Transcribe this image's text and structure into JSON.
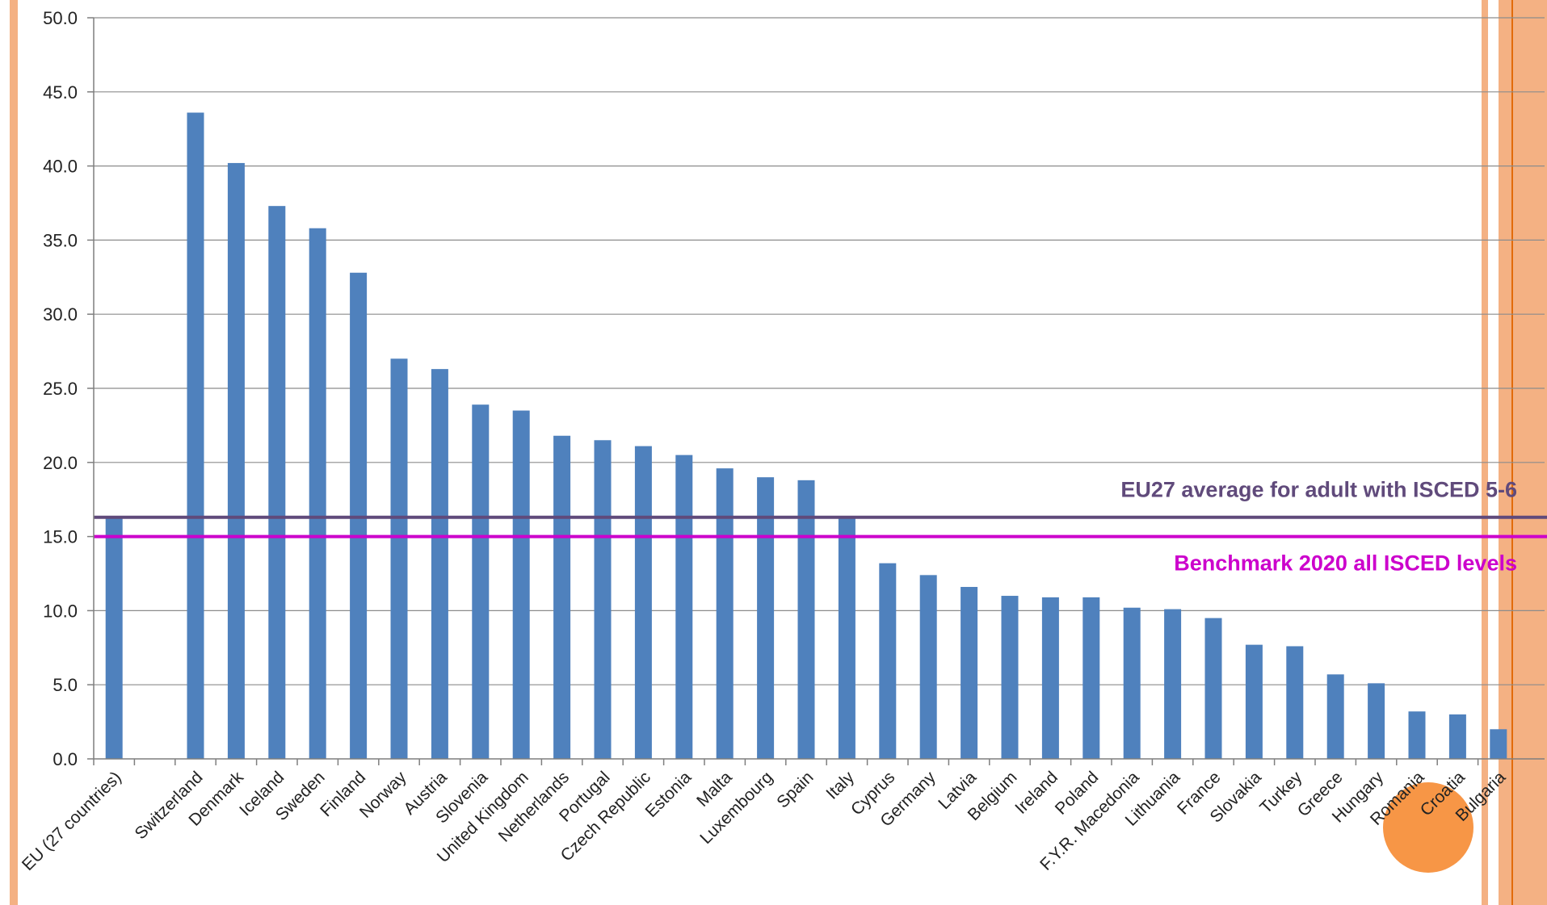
{
  "chart_data": {
    "type": "bar",
    "categories": [
      "EU (27 countries)",
      "",
      "Switzerland",
      "Denmark",
      "Iceland",
      "Sweden",
      "Finland",
      "Norway",
      "Austria",
      "Slovenia",
      "United Kingdom",
      "Netherlands",
      "Portugal",
      "Czech Republic",
      "Estonia",
      "Malta",
      "Luxembourg",
      "Spain",
      "Italy",
      "Cyprus",
      "Germany",
      "Latvia",
      "Belgium",
      "Ireland",
      "Poland",
      "F.Y.R. Macedonia",
      "Lithuania",
      "France",
      "Slovakia",
      "Turkey",
      "Greece",
      "Hungary",
      "Romania",
      "Croatia",
      "Bulgaria"
    ],
    "values": [
      16.3,
      null,
      43.6,
      40.2,
      37.3,
      35.8,
      32.8,
      27.0,
      26.3,
      23.9,
      23.5,
      21.8,
      21.5,
      21.1,
      20.5,
      19.6,
      19.0,
      18.8,
      16.3,
      13.2,
      12.4,
      11.6,
      11.0,
      10.9,
      10.9,
      10.2,
      10.1,
      9.5,
      7.7,
      7.6,
      5.7,
      5.1,
      3.2,
      3.0,
      2.0
    ],
    "title": "",
    "xlabel": "",
    "ylabel": "",
    "ylim": [
      0,
      50
    ],
    "yticks": [
      "0.0",
      "5.0",
      "10.0",
      "15.0",
      "20.0",
      "25.0",
      "30.0",
      "35.0",
      "40.0",
      "45.0",
      "50.0"
    ],
    "grid": true,
    "bar_color": "#4f81bd",
    "reference_lines": [
      {
        "value": 16.3,
        "label": "EU27 average for adult with ISCED 5-6",
        "color": "#604a7b"
      },
      {
        "value": 15.0,
        "label": "Benchmark 2020 all ISCED levels",
        "color": "#cc00cc"
      }
    ],
    "highlight": {
      "category": "Romania",
      "color": "#f79646"
    },
    "decor_color": "#f4b183"
  }
}
